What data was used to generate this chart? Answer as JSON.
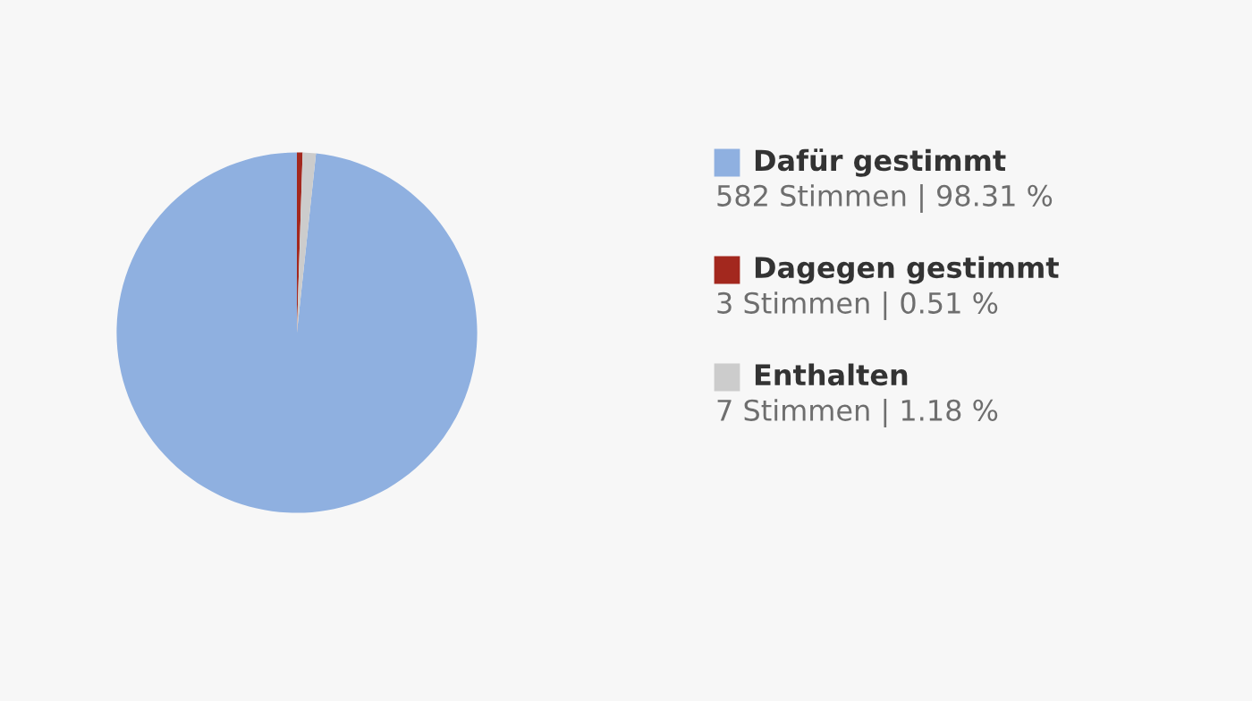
{
  "chart_data": {
    "type": "pie",
    "categories": [
      "Dafür gestimmt",
      "Dagegen gestimmt",
      "Enthalten"
    ],
    "values": [
      582,
      3,
      7
    ],
    "colors": [
      "#8fb0e0",
      "#a3281e",
      "#cccccc"
    ],
    "value_labels": [
      "582 Stimmen | 98.31 %",
      "3 Stimmen | 0.51 %",
      "7 Stimmen | 1.18 %"
    ],
    "legend": "right"
  }
}
